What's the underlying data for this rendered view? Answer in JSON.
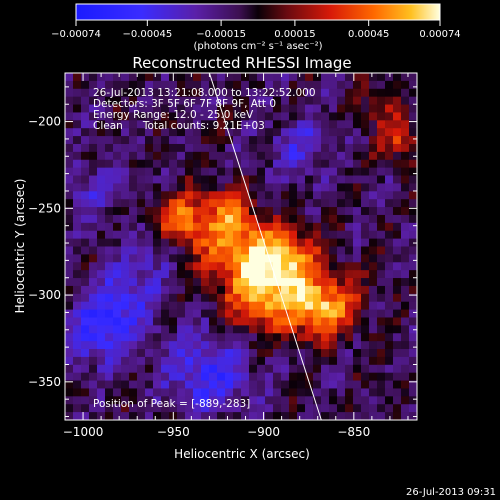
{
  "chart_data": {
    "type": "heatmap",
    "title": "Reconstructed RHESSI Image",
    "xlabel": "Heliocentric X (arcsec)",
    "ylabel": "Heliocentric Y (arcsec)",
    "xlim": [
      -1010,
      -815
    ],
    "ylim": [
      -372,
      -172
    ],
    "x_ticks": [
      -1000,
      -950,
      -900,
      -850
    ],
    "y_ticks": [
      -200,
      -250,
      -300,
      -350
    ],
    "x_tick_labels": [
      "−1000",
      "−950",
      "−900",
      "−850"
    ],
    "y_tick_labels": [
      "−200",
      "−250",
      "−300",
      "−350"
    ],
    "colorbar": {
      "range": [
        -0.00074,
        0.00074
      ],
      "ticks": [
        -0.00074,
        -0.00045,
        -0.00015,
        0.00015,
        0.00045,
        0.00074
      ],
      "tick_labels": [
        "−0.00074",
        "−0.00045",
        "−0.00015",
        "0.00015",
        "0.00045",
        "0.00074"
      ],
      "unit_label": "(photons cm⁻² s⁻¹ asec⁻²)",
      "colormap": "blue-purple-red-yellow-white"
    },
    "annotations": [
      "26-Jul-2013 13:21:08.000 to 13:22:52.000",
      "Detectors: 3F 5F 6F 7F 8F 9F, Att 0",
      "Energy Range: 12.0 - 25.0 keV",
      "Clean      Total counts: 9.21E+03"
    ],
    "peak_label": "Position of Peak = [-889,-283]",
    "peak_position": [
      -889,
      -283
    ],
    "limb_line": [
      [
        -930,
        -172
      ],
      [
        -868,
        -372
      ]
    ],
    "sources": [
      {
        "x": -889,
        "y": -283,
        "amp": 1.0,
        "sigma": 14
      },
      {
        "x": -915,
        "y": -275,
        "amp": 0.75,
        "sigma": 14
      },
      {
        "x": -945,
        "y": -258,
        "amp": 0.7,
        "sigma": 12
      },
      {
        "x": -905,
        "y": -305,
        "amp": 0.65,
        "sigma": 12
      },
      {
        "x": -860,
        "y": -305,
        "amp": 0.55,
        "sigma": 12
      },
      {
        "x": -875,
        "y": -310,
        "amp": 0.6,
        "sigma": 12
      },
      {
        "x": -920,
        "y": -250,
        "amp": 0.5,
        "sigma": 10
      },
      {
        "x": -825,
        "y": -210,
        "amp": 0.5,
        "sigma": 9
      },
      {
        "x": -835,
        "y": -190,
        "amp": 0.35,
        "sigma": 8
      },
      {
        "x": -990,
        "y": -320,
        "amp": -0.6,
        "sigma": 14
      },
      {
        "x": -930,
        "y": -345,
        "amp": -0.55,
        "sigma": 16
      },
      {
        "x": -960,
        "y": -275,
        "amp": -0.3,
        "sigma": 10
      },
      {
        "x": -975,
        "y": -300,
        "amp": -0.35,
        "sigma": 12
      },
      {
        "x": -880,
        "y": -215,
        "amp": -0.35,
        "sigma": 12
      },
      {
        "x": -995,
        "y": -240,
        "amp": -0.3,
        "sigma": 12
      }
    ]
  },
  "footer": {
    "timestamp": "26-Jul-2013 09:31"
  }
}
